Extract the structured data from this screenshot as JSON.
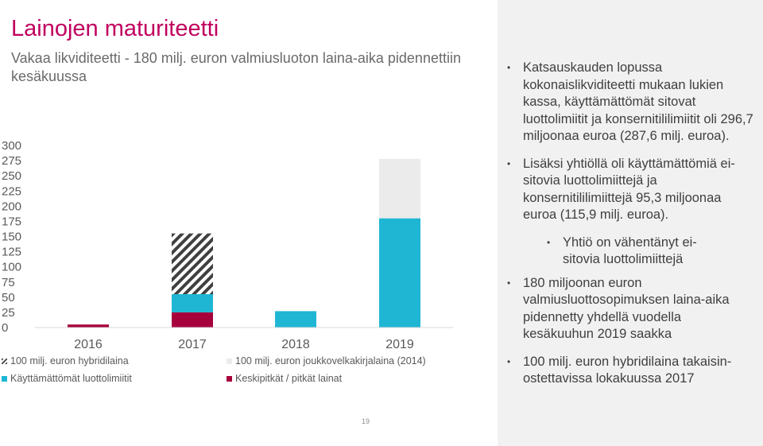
{
  "slide": {
    "title": "Lainojen maturiteetti",
    "subtitle": "Vakaa likviditeetti  - 180 milj. euron valmiusluoton laina-aika pidennettiin kesäkuussa",
    "page_number": "19"
  },
  "colors": {
    "title": "#c0005f",
    "maroon": "#a6003c",
    "cyan": "#1fb6d4",
    "light_grey": "#ebebeb",
    "hatch": "#404040",
    "panel": "#f1f1f1"
  },
  "chart_data": {
    "type": "bar",
    "stacked": true,
    "categories": [
      "2016",
      "2017",
      "2018",
      "2019"
    ],
    "y_ticks": [
      "0",
      "25",
      "50",
      "75",
      "100",
      "125",
      "150",
      "175",
      "200",
      "225",
      "250",
      "275",
      "300"
    ],
    "ylim": [
      0,
      300
    ],
    "grid": false,
    "legend_position": "bottom",
    "series": [
      {
        "name": "Keskipitkät / pitkät lainat",
        "color": "#a6003c",
        "values": [
          5,
          25,
          0,
          0
        ]
      },
      {
        "name": "Käyttämättömät luottolimiitit",
        "color": "#1fb6d4",
        "values": [
          0,
          30,
          27,
          180
        ]
      },
      {
        "name": "100 milj. euron hybridilaina",
        "pattern": "hatch",
        "values": [
          0,
          100,
          0,
          0
        ]
      },
      {
        "name": "100 milj. euron joukkovelkakirjalaina (2014)",
        "color": "#ebebeb",
        "values": [
          0,
          0,
          0,
          98
        ]
      }
    ]
  },
  "bullets": [
    {
      "text": "Katsauskauden lopussa kokonaislikviditeetti mukaan lukien kassa, käyttämättömät sitovat luottolimiitit ja konsernitililimiitit oli 296,7 miljoonaa euroa (287,6 milj. euroa).",
      "level": 1
    },
    {
      "text": "Lisäksi yhtiöllä oli käyttämättömiä ei-sitovia luottolimiittejä ja konsernitililimiittejä 95,3 miljoonaa euroa (115,9 milj. euroa).",
      "level": 1
    },
    {
      "text": "Yhtiö on vähentänyt ei-sitovia luottolimiittejä",
      "level": 2
    },
    {
      "text": "180 miljoonan euron valmiusluottosopimuksen laina-aika pidennetty yhdellä vuodella kesäkuuhun 2019 saakka",
      "level": 1
    },
    {
      "text": "100 milj. euron hybridilaina takaisin-ostettavissa lokakuussa 2017",
      "level": 1
    }
  ]
}
